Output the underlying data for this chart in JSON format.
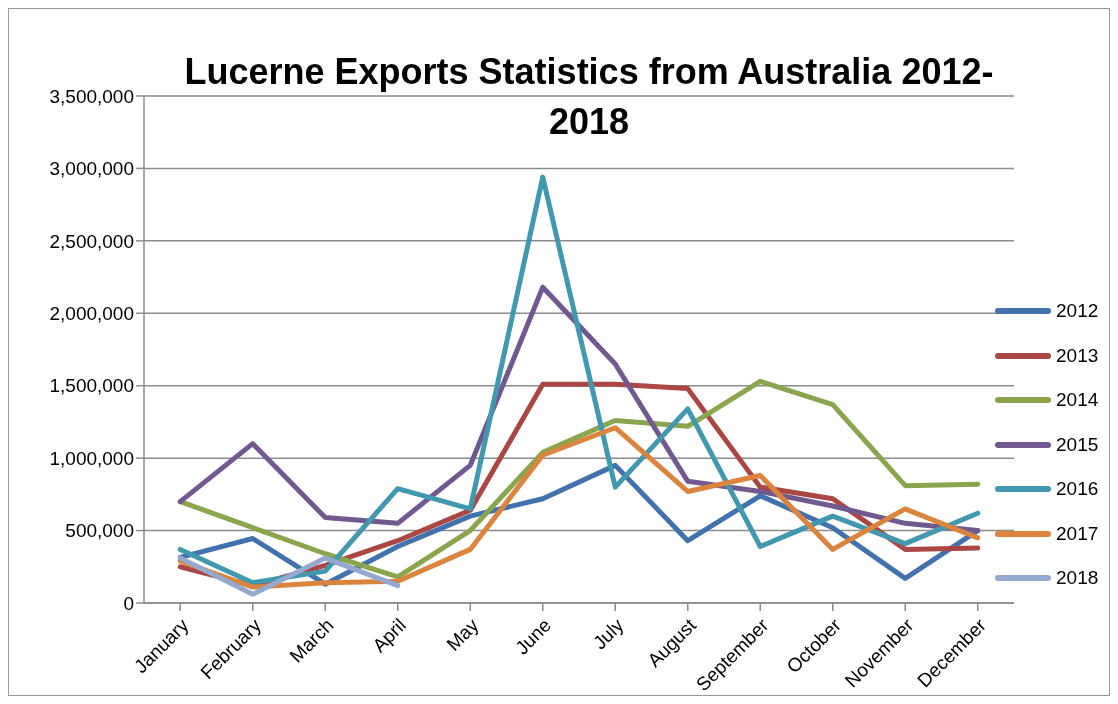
{
  "chart_data": {
    "type": "line",
    "title": "Lucerne Exports Statistics from Australia 2012-2018",
    "categories": [
      "January",
      "February",
      "March",
      "April",
      "May",
      "June",
      "July",
      "August",
      "September",
      "October",
      "November",
      "December"
    ],
    "series": [
      {
        "name": "2012",
        "color": "#4172ad",
        "values": [
          315000,
          445000,
          130000,
          390000,
          600000,
          720000,
          950000,
          430000,
          740000,
          520000,
          170000,
          500000
        ]
      },
      {
        "name": "2013",
        "color": "#aa4643",
        "values": [
          250000,
          120000,
          260000,
          430000,
          640000,
          1510000,
          1510000,
          1480000,
          800000,
          720000,
          370000,
          380000
        ]
      },
      {
        "name": "2014",
        "color": "#89a54e",
        "values": [
          700000,
          520000,
          340000,
          180000,
          500000,
          1040000,
          1260000,
          1220000,
          1530000,
          1370000,
          810000,
          820000
        ]
      },
      {
        "name": "2015",
        "color": "#71588f",
        "values": [
          700000,
          1100000,
          590000,
          550000,
          950000,
          2180000,
          1650000,
          840000,
          770000,
          670000,
          550000,
          500000
        ]
      },
      {
        "name": "2016",
        "color": "#4198af",
        "values": [
          370000,
          140000,
          220000,
          790000,
          650000,
          2940000,
          800000,
          1340000,
          390000,
          600000,
          410000,
          620000
        ]
      },
      {
        "name": "2017",
        "color": "#db843d",
        "values": [
          290000,
          110000,
          140000,
          150000,
          370000,
          1020000,
          1210000,
          770000,
          880000,
          370000,
          650000,
          450000
        ]
      },
      {
        "name": "2018",
        "color": "#93a9cf",
        "values": [
          310000,
          60000,
          310000,
          120000,
          null,
          null,
          null,
          null,
          null,
          null,
          null,
          null
        ]
      }
    ],
    "ylim": [
      0,
      3500000
    ],
    "yticks": [
      {
        "value": 0,
        "label": "0"
      },
      {
        "value": 500000,
        "label": "500,000"
      },
      {
        "value": 1000000,
        "label": "1,000,000"
      },
      {
        "value": 1500000,
        "label": "1,500,000"
      },
      {
        "value": 2000000,
        "label": "2,000,000"
      },
      {
        "value": 2500000,
        "label": "2,500,000"
      },
      {
        "value": 3000000,
        "label": "3,000,000"
      },
      {
        "value": 3500000,
        "label": "3,500,000"
      }
    ],
    "grid": "y",
    "legend": "right",
    "marker": "none",
    "line_style": "solid"
  }
}
